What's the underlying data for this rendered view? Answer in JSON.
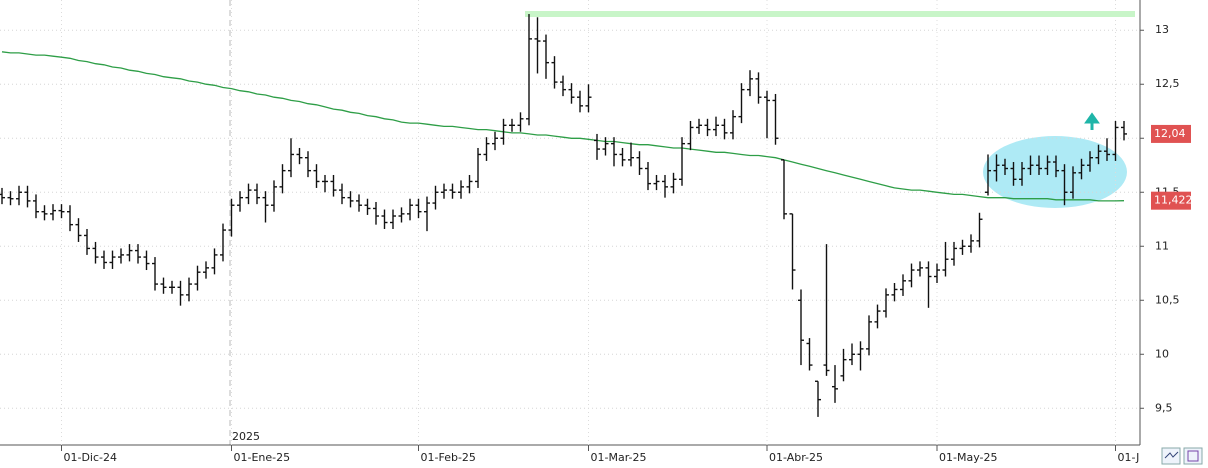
{
  "chart_data": {
    "type": "ohlc",
    "categories": [
      null,
      null,
      null,
      null,
      null,
      null,
      null,
      "01-Dic-24",
      null,
      null,
      null,
      null,
      null,
      null,
      null,
      null,
      null,
      null,
      null,
      null,
      null,
      null,
      null,
      null,
      null,
      null,
      null,
      "01-Ene-25",
      null,
      null,
      null,
      null,
      null,
      null,
      null,
      null,
      null,
      null,
      null,
      null,
      null,
      null,
      null,
      null,
      null,
      null,
      null,
      null,
      null,
      "01-Feb-25",
      null,
      null,
      null,
      null,
      null,
      null,
      null,
      null,
      null,
      null,
      null,
      null,
      null,
      null,
      null,
      null,
      null,
      null,
      null,
      "01-Mar-25",
      null,
      null,
      null,
      null,
      null,
      null,
      null,
      null,
      null,
      null,
      null,
      null,
      null,
      null,
      null,
      null,
      null,
      null,
      null,
      null,
      "01-Abr-25",
      null,
      null,
      null,
      null,
      null,
      null,
      null,
      null,
      null,
      null,
      null,
      null,
      null,
      null,
      null,
      null,
      null,
      null,
      null,
      "01-May-25",
      null,
      null,
      null,
      null,
      null,
      null,
      null,
      null,
      null,
      null,
      null,
      null,
      null,
      null,
      null,
      null,
      null,
      null,
      null,
      null,
      "01-J",
      null
    ],
    "open": [
      11.48,
      11.45,
      11.44,
      11.5,
      11.42,
      11.32,
      11.3,
      11.33,
      11.32,
      11.2,
      11.1,
      10.98,
      10.9,
      10.85,
      10.9,
      10.92,
      10.96,
      10.9,
      10.84,
      10.65,
      10.62,
      10.62,
      10.55,
      10.65,
      10.76,
      10.8,
      10.92,
      11.15,
      11.38,
      11.45,
      11.52,
      11.45,
      11.38,
      11.55,
      11.7,
      11.85,
      11.82,
      11.7,
      11.6,
      11.6,
      11.52,
      11.45,
      11.42,
      11.38,
      11.35,
      11.28,
      11.22,
      11.28,
      11.3,
      11.38,
      11.32,
      11.4,
      11.5,
      11.52,
      11.5,
      11.55,
      11.6,
      11.85,
      11.95,
      12.0,
      12.12,
      12.12,
      12.18,
      12.92,
      12.9,
      12.7,
      12.52,
      12.45,
      12.38,
      12.3,
      11.98,
      11.9,
      11.95,
      11.85,
      11.8,
      11.82,
      11.72,
      11.58,
      11.6,
      11.55,
      11.62,
      11.95,
      12.1,
      12.12,
      12.08,
      12.12,
      12.05,
      12.2,
      12.45,
      12.55,
      12.38,
      12.35,
      11.8,
      11.3,
      10.5,
      10.1,
      9.75,
      9.9,
      9.7,
      9.8,
      9.95,
      10.0,
      10.05,
      10.3,
      10.4,
      10.55,
      10.6,
      10.68,
      10.78,
      10.8,
      10.72,
      10.78,
      10.88,
      10.98,
      11.0,
      11.05,
      11.5,
      11.7,
      11.75,
      11.72,
      11.62,
      11.72,
      11.75,
      11.72,
      11.78,
      11.7,
      11.5,
      11.68,
      11.75,
      11.82,
      11.88,
      11.85,
      12.1
    ],
    "high": [
      11.54,
      11.51,
      11.56,
      11.56,
      11.48,
      11.38,
      11.39,
      11.39,
      11.38,
      11.26,
      11.16,
      11.04,
      10.96,
      10.96,
      10.98,
      11.02,
      11.02,
      10.96,
      10.9,
      10.71,
      10.68,
      10.68,
      10.71,
      10.82,
      10.86,
      10.98,
      11.21,
      11.44,
      11.51,
      11.58,
      11.58,
      11.51,
      11.61,
      11.76,
      12.0,
      11.91,
      11.88,
      11.76,
      11.66,
      11.66,
      11.58,
      11.51,
      11.48,
      11.44,
      11.41,
      11.34,
      11.34,
      11.36,
      11.44,
      11.44,
      11.46,
      11.56,
      11.58,
      11.58,
      11.61,
      11.66,
      11.91,
      12.01,
      12.06,
      12.18,
      12.18,
      12.24,
      13.15,
      13.12,
      12.96,
      12.76,
      12.58,
      12.51,
      12.44,
      12.5,
      12.04,
      12.01,
      12.01,
      11.91,
      11.96,
      11.88,
      11.78,
      11.66,
      11.66,
      11.68,
      12.01,
      12.16,
      12.18,
      12.18,
      12.2,
      12.18,
      12.26,
      12.51,
      12.63,
      12.61,
      12.44,
      12.41,
      11.8,
      11.3,
      10.6,
      10.15,
      9.75,
      11.02,
      9.9,
      10.05,
      10.1,
      10.12,
      10.36,
      10.46,
      10.61,
      10.66,
      10.74,
      10.84,
      10.86,
      10.86,
      10.84,
      11.04,
      11.04,
      11.06,
      11.11,
      11.31,
      11.85,
      11.85,
      11.81,
      11.78,
      11.78,
      11.84,
      11.84,
      11.84,
      11.84,
      11.76,
      11.74,
      11.81,
      11.88,
      11.94,
      12.0,
      12.16,
      12.16
    ],
    "low": [
      11.39,
      11.38,
      11.38,
      11.36,
      11.26,
      11.24,
      11.24,
      11.26,
      11.14,
      11.04,
      10.92,
      10.84,
      10.79,
      10.79,
      10.84,
      10.86,
      10.84,
      10.78,
      10.59,
      10.56,
      10.56,
      10.45,
      10.49,
      10.59,
      10.7,
      10.74,
      10.86,
      11.09,
      11.32,
      11.39,
      11.39,
      11.22,
      11.32,
      11.49,
      11.64,
      11.76,
      11.64,
      11.54,
      11.5,
      11.46,
      11.39,
      11.36,
      11.32,
      11.29,
      11.2,
      11.16,
      11.16,
      11.22,
      11.24,
      11.26,
      11.14,
      11.34,
      11.44,
      11.44,
      11.44,
      11.49,
      11.54,
      11.79,
      11.89,
      11.94,
      12.06,
      12.06,
      12.12,
      12.6,
      12.55,
      12.46,
      12.39,
      12.32,
      12.24,
      12.24,
      11.8,
      11.84,
      11.74,
      11.74,
      11.74,
      11.66,
      11.52,
      11.52,
      11.45,
      11.49,
      11.56,
      11.89,
      12.04,
      12.02,
      12.02,
      11.99,
      11.99,
      12.14,
      12.39,
      12.32,
      12.0,
      11.94,
      11.25,
      10.6,
      9.9,
      9.85,
      9.42,
      9.8,
      9.55,
      9.75,
      9.9,
      9.85,
      9.99,
      10.24,
      10.34,
      10.49,
      10.54,
      10.62,
      10.72,
      10.43,
      10.66,
      10.72,
      10.82,
      10.92,
      10.94,
      10.99,
      11.47,
      11.6,
      11.66,
      11.56,
      11.56,
      11.66,
      11.66,
      11.66,
      11.64,
      11.38,
      11.44,
      11.62,
      11.69,
      11.76,
      11.79,
      11.79,
      11.98
    ],
    "close": [
      11.45,
      11.44,
      11.5,
      11.42,
      11.32,
      11.3,
      11.33,
      11.32,
      11.2,
      11.1,
      10.98,
      10.9,
      10.85,
      10.9,
      10.92,
      10.96,
      10.9,
      10.84,
      10.65,
      10.62,
      10.62,
      10.55,
      10.65,
      10.76,
      10.8,
      10.92,
      11.15,
      11.38,
      11.45,
      11.52,
      11.45,
      11.38,
      11.55,
      11.7,
      11.85,
      11.82,
      11.7,
      11.6,
      11.6,
      11.52,
      11.45,
      11.42,
      11.38,
      11.35,
      11.28,
      11.22,
      11.28,
      11.3,
      11.38,
      11.32,
      11.4,
      11.5,
      11.52,
      11.5,
      11.55,
      11.6,
      11.85,
      11.95,
      12.0,
      12.12,
      12.12,
      12.18,
      12.92,
      12.9,
      12.7,
      12.52,
      12.45,
      12.38,
      12.3,
      12.38,
      11.9,
      11.95,
      11.85,
      11.8,
      11.82,
      11.72,
      11.58,
      11.6,
      11.55,
      11.62,
      11.95,
      12.1,
      12.12,
      12.08,
      12.12,
      12.05,
      12.2,
      12.45,
      12.55,
      12.38,
      12.35,
      12.0,
      11.3,
      10.78,
      10.13,
      9.9,
      9.58,
      9.85,
      9.68,
      9.95,
      10.0,
      10.05,
      10.3,
      10.4,
      10.55,
      10.6,
      10.68,
      10.78,
      10.8,
      10.72,
      10.78,
      10.88,
      10.98,
      11.0,
      11.05,
      11.25,
      11.7,
      11.75,
      11.72,
      11.62,
      11.72,
      11.75,
      11.72,
      11.78,
      11.7,
      11.5,
      11.68,
      11.75,
      11.82,
      11.88,
      11.85,
      12.1,
      12.04
    ],
    "bar_color": "#111111",
    "moving_average": {
      "color": "#2e9e47",
      "values": [
        12.8,
        12.79,
        12.79,
        12.78,
        12.77,
        12.77,
        12.76,
        12.75,
        12.74,
        12.72,
        12.71,
        12.69,
        12.68,
        12.66,
        12.65,
        12.63,
        12.62,
        12.6,
        12.59,
        12.57,
        12.56,
        12.55,
        12.53,
        12.52,
        12.5,
        12.49,
        12.47,
        12.46,
        12.44,
        12.43,
        12.41,
        12.4,
        12.38,
        12.37,
        12.35,
        12.34,
        12.32,
        12.31,
        12.29,
        12.27,
        12.26,
        12.24,
        12.23,
        12.21,
        12.2,
        12.18,
        12.17,
        12.15,
        12.14,
        12.14,
        12.13,
        12.12,
        12.11,
        12.11,
        12.1,
        12.09,
        12.08,
        12.08,
        12.07,
        12.06,
        12.05,
        12.05,
        12.04,
        12.03,
        12.03,
        12.02,
        12.01,
        12.0,
        12.0,
        11.99,
        11.98,
        11.97,
        11.97,
        11.96,
        11.95,
        11.94,
        11.94,
        11.93,
        11.92,
        11.91,
        11.91,
        11.9,
        11.89,
        11.88,
        11.87,
        11.87,
        11.86,
        11.85,
        11.84,
        11.84,
        11.83,
        11.82,
        11.8,
        11.78,
        11.76,
        11.74,
        11.72,
        11.7,
        11.68,
        11.66,
        11.64,
        11.62,
        11.6,
        11.58,
        11.56,
        11.54,
        11.53,
        11.52,
        11.52,
        11.51,
        11.5,
        11.49,
        11.48,
        11.48,
        11.47,
        11.46,
        11.45,
        11.45,
        11.45,
        11.44,
        11.44,
        11.44,
        11.44,
        11.44,
        11.43,
        11.43,
        11.43,
        11.43,
        11.43,
        11.42,
        11.42,
        11.42,
        11.422
      ]
    },
    "horizontal_lines": [
      {
        "value": 13.15,
        "color": "#c8f5c8"
      }
    ],
    "price_labels": [
      {
        "value": 12.04,
        "label": "12,04",
        "color": "#e05252"
      },
      {
        "value": 11.422,
        "label": "11,422",
        "color": "#e05252"
      }
    ],
    "annotations": [
      "2025"
    ],
    "ylim": [
      9.16,
      13.28
    ],
    "yticks": [
      {
        "value": 9.5,
        "label": "9,5"
      },
      10,
      {
        "value": 10.5,
        "label": "10,5"
      },
      11,
      {
        "value": 11.5,
        "label": "11,5"
      },
      12,
      {
        "value": 12.5,
        "label": "12,5"
      },
      13
    ],
    "grid": true
  }
}
